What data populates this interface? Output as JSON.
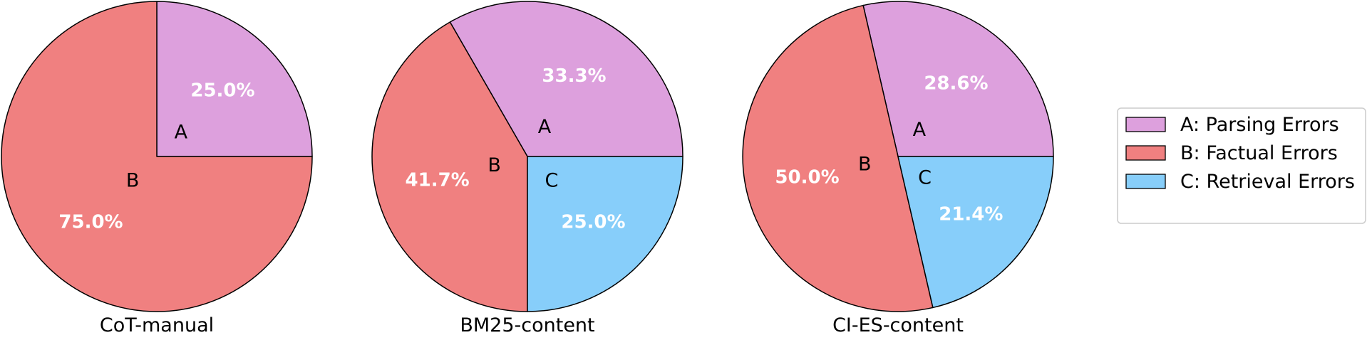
{
  "chart_data": [
    {
      "type": "pie",
      "title": "CoT-manual",
      "slices": [
        {
          "label": "A",
          "value": 25.0,
          "pct_text": "25.0%",
          "color": "#dda0dd"
        },
        {
          "label": "B",
          "value": 75.0,
          "pct_text": "75.0%",
          "color": "#f08080"
        }
      ]
    },
    {
      "type": "pie",
      "title": "BM25-content",
      "slices": [
        {
          "label": "A",
          "value": 33.3,
          "pct_text": "33.3%",
          "color": "#dda0dd"
        },
        {
          "label": "B",
          "value": 41.7,
          "pct_text": "41.7%",
          "color": "#f08080"
        },
        {
          "label": "C",
          "value": 25.0,
          "pct_text": "25.0%",
          "color": "#87cefa"
        }
      ]
    },
    {
      "type": "pie",
      "title": "CI-ES-content",
      "slices": [
        {
          "label": "A",
          "value": 28.6,
          "pct_text": "28.6%",
          "color": "#dda0dd"
        },
        {
          "label": "B",
          "value": 50.0,
          "pct_text": "50.0%",
          "color": "#f08080"
        },
        {
          "label": "C",
          "value": 21.4,
          "pct_text": "21.4%",
          "color": "#87cefa"
        }
      ]
    }
  ],
  "legend": {
    "placement": "right",
    "entries": [
      {
        "text": "A: Parsing Errors",
        "color": "#dda0dd"
      },
      {
        "text": "B: Factual Errors",
        "color": "#f08080"
      },
      {
        "text": "C: Retrieval Errors",
        "color": "#87cefa"
      }
    ]
  }
}
